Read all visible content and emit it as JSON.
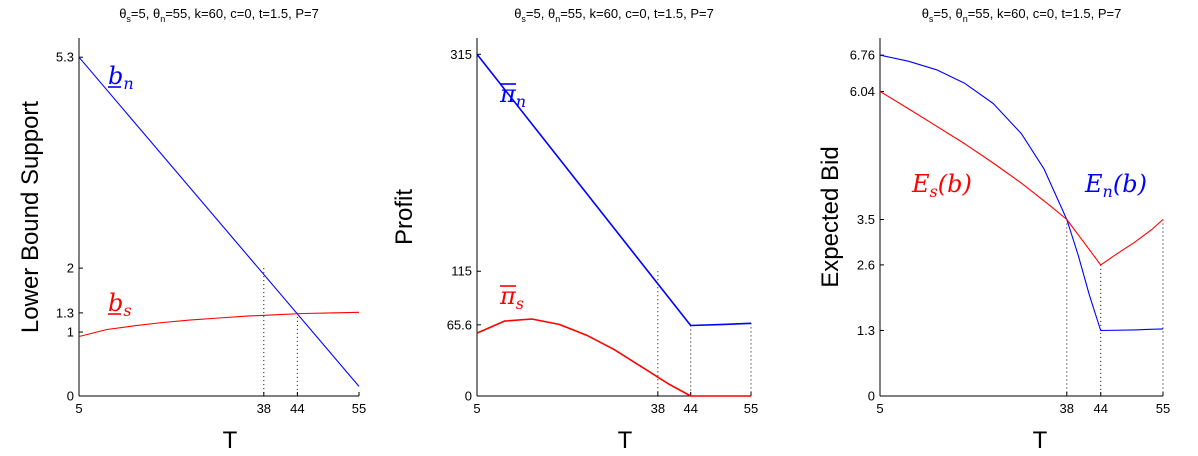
{
  "chart_data": [
    {
      "type": "line",
      "title": {
        "prefix": "θ",
        "sub1": "s",
        "mid": "=5, θ",
        "sub2": "n",
        "rest": "=55, k=60, c=0, t=1.5, P=7"
      },
      "xlabel": "T",
      "ylabel": "Lower Bound Support",
      "xlim": [
        5,
        55
      ],
      "ylim": [
        0,
        5.6
      ],
      "xticks": [
        5,
        38,
        44,
        55
      ],
      "yticks": [
        0,
        1,
        1.3,
        2,
        5.3
      ],
      "yticklabels": [
        "0",
        "1",
        "1.3",
        "2",
        "5.3"
      ],
      "guides": [
        {
          "x": 38,
          "y": 2
        },
        {
          "x": 44,
          "y": 1.3
        }
      ],
      "series": [
        {
          "label": {
            "base": "b",
            "sub": "n"
          },
          "label_style": "underline",
          "color": "#0000ff",
          "points": [
            [
              5,
              5.3
            ],
            [
              55,
              0.15
            ]
          ]
        },
        {
          "label": {
            "base": "b",
            "sub": "s"
          },
          "label_style": "underline",
          "color": "#ff0000",
          "points": [
            [
              5,
              0.93
            ],
            [
              10,
              1.04
            ],
            [
              15,
              1.1
            ],
            [
              20,
              1.15
            ],
            [
              25,
              1.19
            ],
            [
              30,
              1.22
            ],
            [
              35,
              1.25
            ],
            [
              40,
              1.27
            ],
            [
              45,
              1.29
            ],
            [
              50,
              1.3
            ],
            [
              55,
              1.31
            ]
          ]
        }
      ]
    },
    {
      "type": "line",
      "title": {
        "prefix": "θ",
        "sub1": "s",
        "mid": "=5, θ",
        "sub2": "n",
        "rest": "=55, k=60, c=0, t=1.5, P=7"
      },
      "xlabel": "T",
      "ylabel": "Profit",
      "xlim": [
        5,
        55
      ],
      "ylim": [
        0,
        330
      ],
      "xticks": [
        5,
        38,
        44,
        55
      ],
      "yticks": [
        0,
        65.6,
        115,
        315
      ],
      "yticklabels": [
        "0",
        "65.6",
        "115",
        "315"
      ],
      "guides": [
        {
          "x": 38,
          "y": 115
        },
        {
          "x": 44,
          "y": 65
        },
        {
          "x": 55,
          "y": 67
        }
      ],
      "series": [
        {
          "label": {
            "base": "π",
            "sub": "n"
          },
          "label_style": "overline",
          "color": "#0000ff",
          "points": [
            [
              5,
              315
            ],
            [
              44,
              65
            ],
            [
              50,
              66
            ],
            [
              55,
              67
            ]
          ]
        },
        {
          "label": {
            "base": "π",
            "sub": "s"
          },
          "label_style": "overline",
          "color": "#ff0000",
          "points": [
            [
              5,
              58
            ],
            [
              10,
              69
            ],
            [
              15,
              71
            ],
            [
              20,
              66
            ],
            [
              25,
              56
            ],
            [
              30,
              43
            ],
            [
              35,
              27
            ],
            [
              40,
              11
            ],
            [
              44,
              0
            ],
            [
              48,
              0
            ],
            [
              55,
              0
            ]
          ]
        }
      ]
    },
    {
      "type": "line",
      "title": {
        "prefix": "θ",
        "sub1": "s",
        "mid": "=5, θ",
        "sub2": "n",
        "rest": "=55, k=60, c=0, t=1.5, P=7"
      },
      "xlabel": "T",
      "ylabel": "Expected Bid",
      "xlim": [
        5,
        55
      ],
      "ylim": [
        0,
        7.1
      ],
      "xticks": [
        5,
        38,
        44,
        55
      ],
      "yticks": [
        0,
        1.3,
        2.6,
        3.5,
        6.04,
        6.76
      ],
      "yticklabels": [
        "0",
        "1.3",
        "2.6",
        "3.5",
        "6.04",
        "6.76"
      ],
      "guides": [
        {
          "x": 38,
          "y": 3.5
        },
        {
          "x": 44,
          "y": 2.6
        },
        {
          "x": 55,
          "y": 3.5
        }
      ],
      "series": [
        {
          "label": {
            "base": "E",
            "sub": "n",
            "arg": "(b)"
          },
          "label_style": "plain",
          "color": "#0000ff",
          "points": [
            [
              5,
              6.76
            ],
            [
              10,
              6.64
            ],
            [
              15,
              6.47
            ],
            [
              20,
              6.2
            ],
            [
              25,
              5.8
            ],
            [
              30,
              5.2
            ],
            [
              34,
              4.5
            ],
            [
              38,
              3.5
            ],
            [
              40,
              2.8
            ],
            [
              42,
              2.0
            ],
            [
              44,
              1.3
            ],
            [
              50,
              1.31
            ],
            [
              55,
              1.33
            ]
          ]
        },
        {
          "label": {
            "base": "E",
            "sub": "s",
            "arg": "(b)"
          },
          "label_style": "plain",
          "color": "#ff0000",
          "points": [
            [
              5,
              6.04
            ],
            [
              10,
              5.7
            ],
            [
              15,
              5.35
            ],
            [
              20,
              5.0
            ],
            [
              25,
              4.62
            ],
            [
              30,
              4.22
            ],
            [
              35,
              3.78
            ],
            [
              38,
              3.5
            ],
            [
              41,
              3.05
            ],
            [
              44,
              2.6
            ],
            [
              47,
              2.83
            ],
            [
              50,
              3.05
            ],
            [
              53,
              3.3
            ],
            [
              55,
              3.5
            ]
          ]
        }
      ]
    }
  ]
}
